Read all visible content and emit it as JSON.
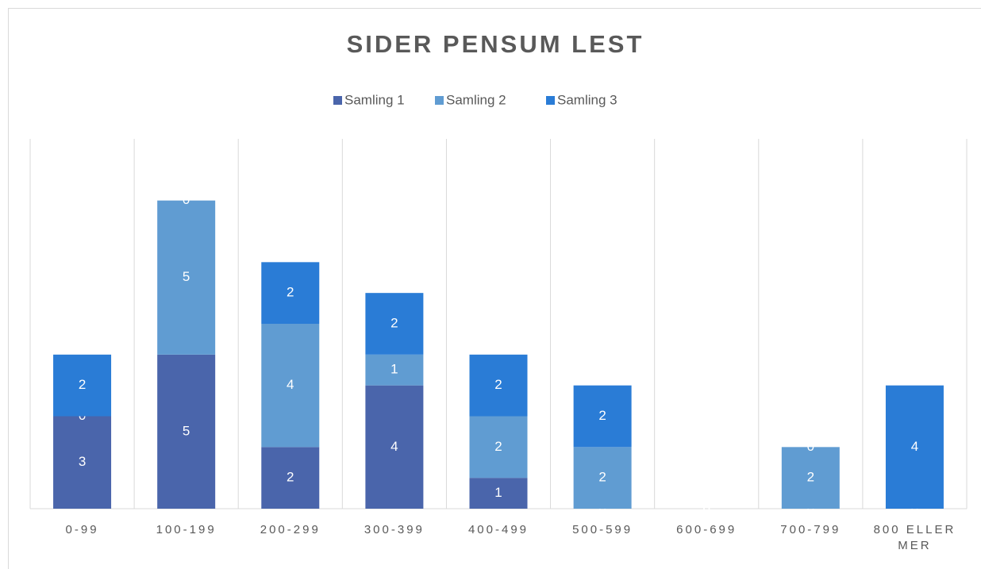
{
  "chart_data": {
    "type": "bar",
    "stacked": true,
    "title": "SIDER PENSUM LEST",
    "categories": [
      "0-99",
      "100-199",
      "200-299",
      "300-399",
      "400-499",
      "500-599",
      "600-699",
      "700-799",
      "800 ELLER MER"
    ],
    "series": [
      {
        "name": "Samling 1",
        "color": "#4a65ab",
        "values": [
          3,
          5,
          2,
          4,
          1,
          0,
          0,
          0,
          0
        ]
      },
      {
        "name": "Samling 2",
        "color": "#609cd2",
        "values": [
          0,
          5,
          4,
          1,
          2,
          2,
          0,
          2,
          0
        ]
      },
      {
        "name": "Samling 3",
        "color": "#2a7cd6",
        "values": [
          2,
          0,
          2,
          2,
          2,
          2,
          0,
          0,
          4
        ]
      }
    ],
    "ylim": [
      0,
      12
    ],
    "legend": "top",
    "grid": true
  }
}
